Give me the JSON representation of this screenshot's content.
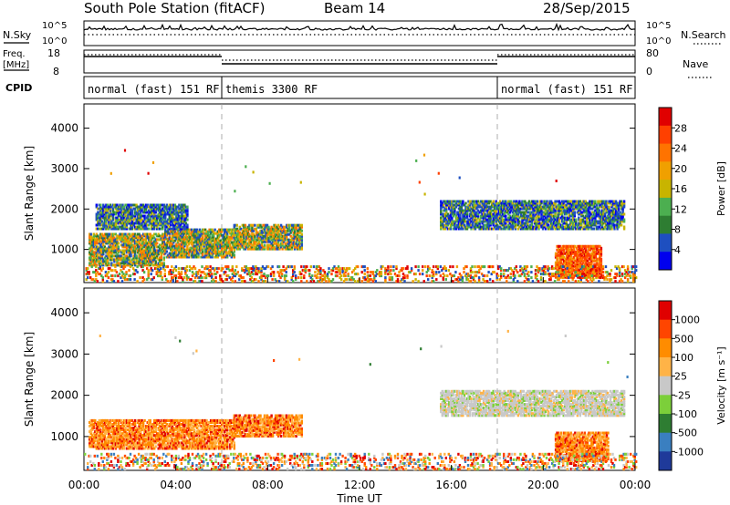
{
  "header": {
    "station": "South Pole Station (fitACF)",
    "beam": "Beam 14",
    "date": "28/Sep/2015"
  },
  "top_panels": {
    "nsky_label": "N.Sky",
    "nsky_ticks": [
      "10^5",
      "10^0"
    ],
    "nsearch_label": "N.Search",
    "nsearch_ticks": [
      "10^5",
      "10^0"
    ],
    "freq_label": "Freq.",
    "freq_unit": "[MHz]",
    "freq_ticks": [
      "18",
      "8"
    ],
    "nave_label": "Nave",
    "nave_ticks": [
      "80",
      "0"
    ],
    "cpid_label": "CPID",
    "cpid_segments": [
      {
        "label": "normal (fast) 151 RF",
        "start_hr": 0,
        "end_hr": 6
      },
      {
        "label": "themis 3300 RF",
        "start_hr": 6,
        "end_hr": 18
      },
      {
        "label": "normal (fast) 151 RF",
        "start_hr": 18,
        "end_hr": 24
      }
    ],
    "freq_levels_mhz": [
      {
        "start_hr": 0,
        "end_hr": 6,
        "value": 16
      },
      {
        "start_hr": 6,
        "end_hr": 18,
        "value": 12
      },
      {
        "start_hr": 18,
        "end_hr": 24,
        "value": 16
      }
    ]
  },
  "chart_data": [
    {
      "type": "heatmap",
      "name": "power-panel",
      "ylabel": "Slant Range [km]",
      "xlim": [
        0,
        24
      ],
      "ylim": [
        180,
        4600
      ],
      "yticks": [
        1000,
        2000,
        3000,
        4000
      ],
      "colorbar": {
        "label": "Power [dB]",
        "ticks": [
          "28",
          "24",
          "20",
          "16",
          "12",
          "8",
          "4"
        ],
        "colors": [
          "#0000ee",
          "#1e4fc0",
          "#2e7d32",
          "#4caf50",
          "#c8b400",
          "#f0a000",
          "#ff7300",
          "#ff4000",
          "#e00000"
        ]
      },
      "echo_regions": [
        {
          "t0": 0.2,
          "t1": 3.5,
          "r0": 600,
          "r1": 1400,
          "level": "mixed"
        },
        {
          "t0": 3.5,
          "t1": 6.5,
          "r0": 800,
          "r1": 1500,
          "level": "mixed"
        },
        {
          "t0": 6.5,
          "t1": 9.5,
          "r0": 1000,
          "r1": 1600,
          "level": "mixed"
        },
        {
          "t0": 0.5,
          "t1": 4.5,
          "r0": 1500,
          "r1": 2100,
          "level": "weak"
        },
        {
          "t0": 15.5,
          "t1": 23.5,
          "r0": 1500,
          "r1": 2200,
          "level": "weak"
        },
        {
          "t0": 20.5,
          "t1": 22.5,
          "r0": 300,
          "r1": 1100,
          "level": "strong"
        },
        {
          "t0": 0.0,
          "t1": 24.0,
          "r0": 200,
          "r1": 600,
          "level": "ground"
        }
      ]
    },
    {
      "type": "heatmap",
      "name": "velocity-panel",
      "xlabel": "Time UT",
      "ylabel": "Slant Range [km]",
      "xlim": [
        0,
        24
      ],
      "ylim": [
        180,
        4600
      ],
      "xticks": [
        "00:00",
        "04:00",
        "08:00",
        "12:00",
        "16:00",
        "20:00",
        "00:00"
      ],
      "yticks": [
        1000,
        2000,
        3000,
        4000
      ],
      "colorbar": {
        "label": "Velocity [m s⁻¹]",
        "ticks": [
          "1000",
          "500",
          "100",
          "25",
          "-25",
          "-100",
          "-500",
          "-1000"
        ],
        "colors": [
          "#1f3a9a",
          "#3a7fc0",
          "#2e7d32",
          "#7ccf3a",
          "#c8c8c8",
          "#ffb347",
          "#ff8c00",
          "#ff4500",
          "#e00000"
        ]
      },
      "echo_regions": [
        {
          "t0": 0.2,
          "t1": 6.5,
          "r0": 700,
          "r1": 1400,
          "level": "toward"
        },
        {
          "t0": 6.5,
          "t1": 9.5,
          "r0": 1000,
          "r1": 1500,
          "level": "toward"
        },
        {
          "t0": 15.5,
          "t1": 23.5,
          "r0": 1500,
          "r1": 2100,
          "level": "slow"
        },
        {
          "t0": 20.5,
          "t1": 22.8,
          "r0": 400,
          "r1": 1100,
          "level": "toward"
        },
        {
          "t0": 0.0,
          "t1": 24.0,
          "r0": 200,
          "r1": 600,
          "level": "ground"
        }
      ]
    }
  ]
}
